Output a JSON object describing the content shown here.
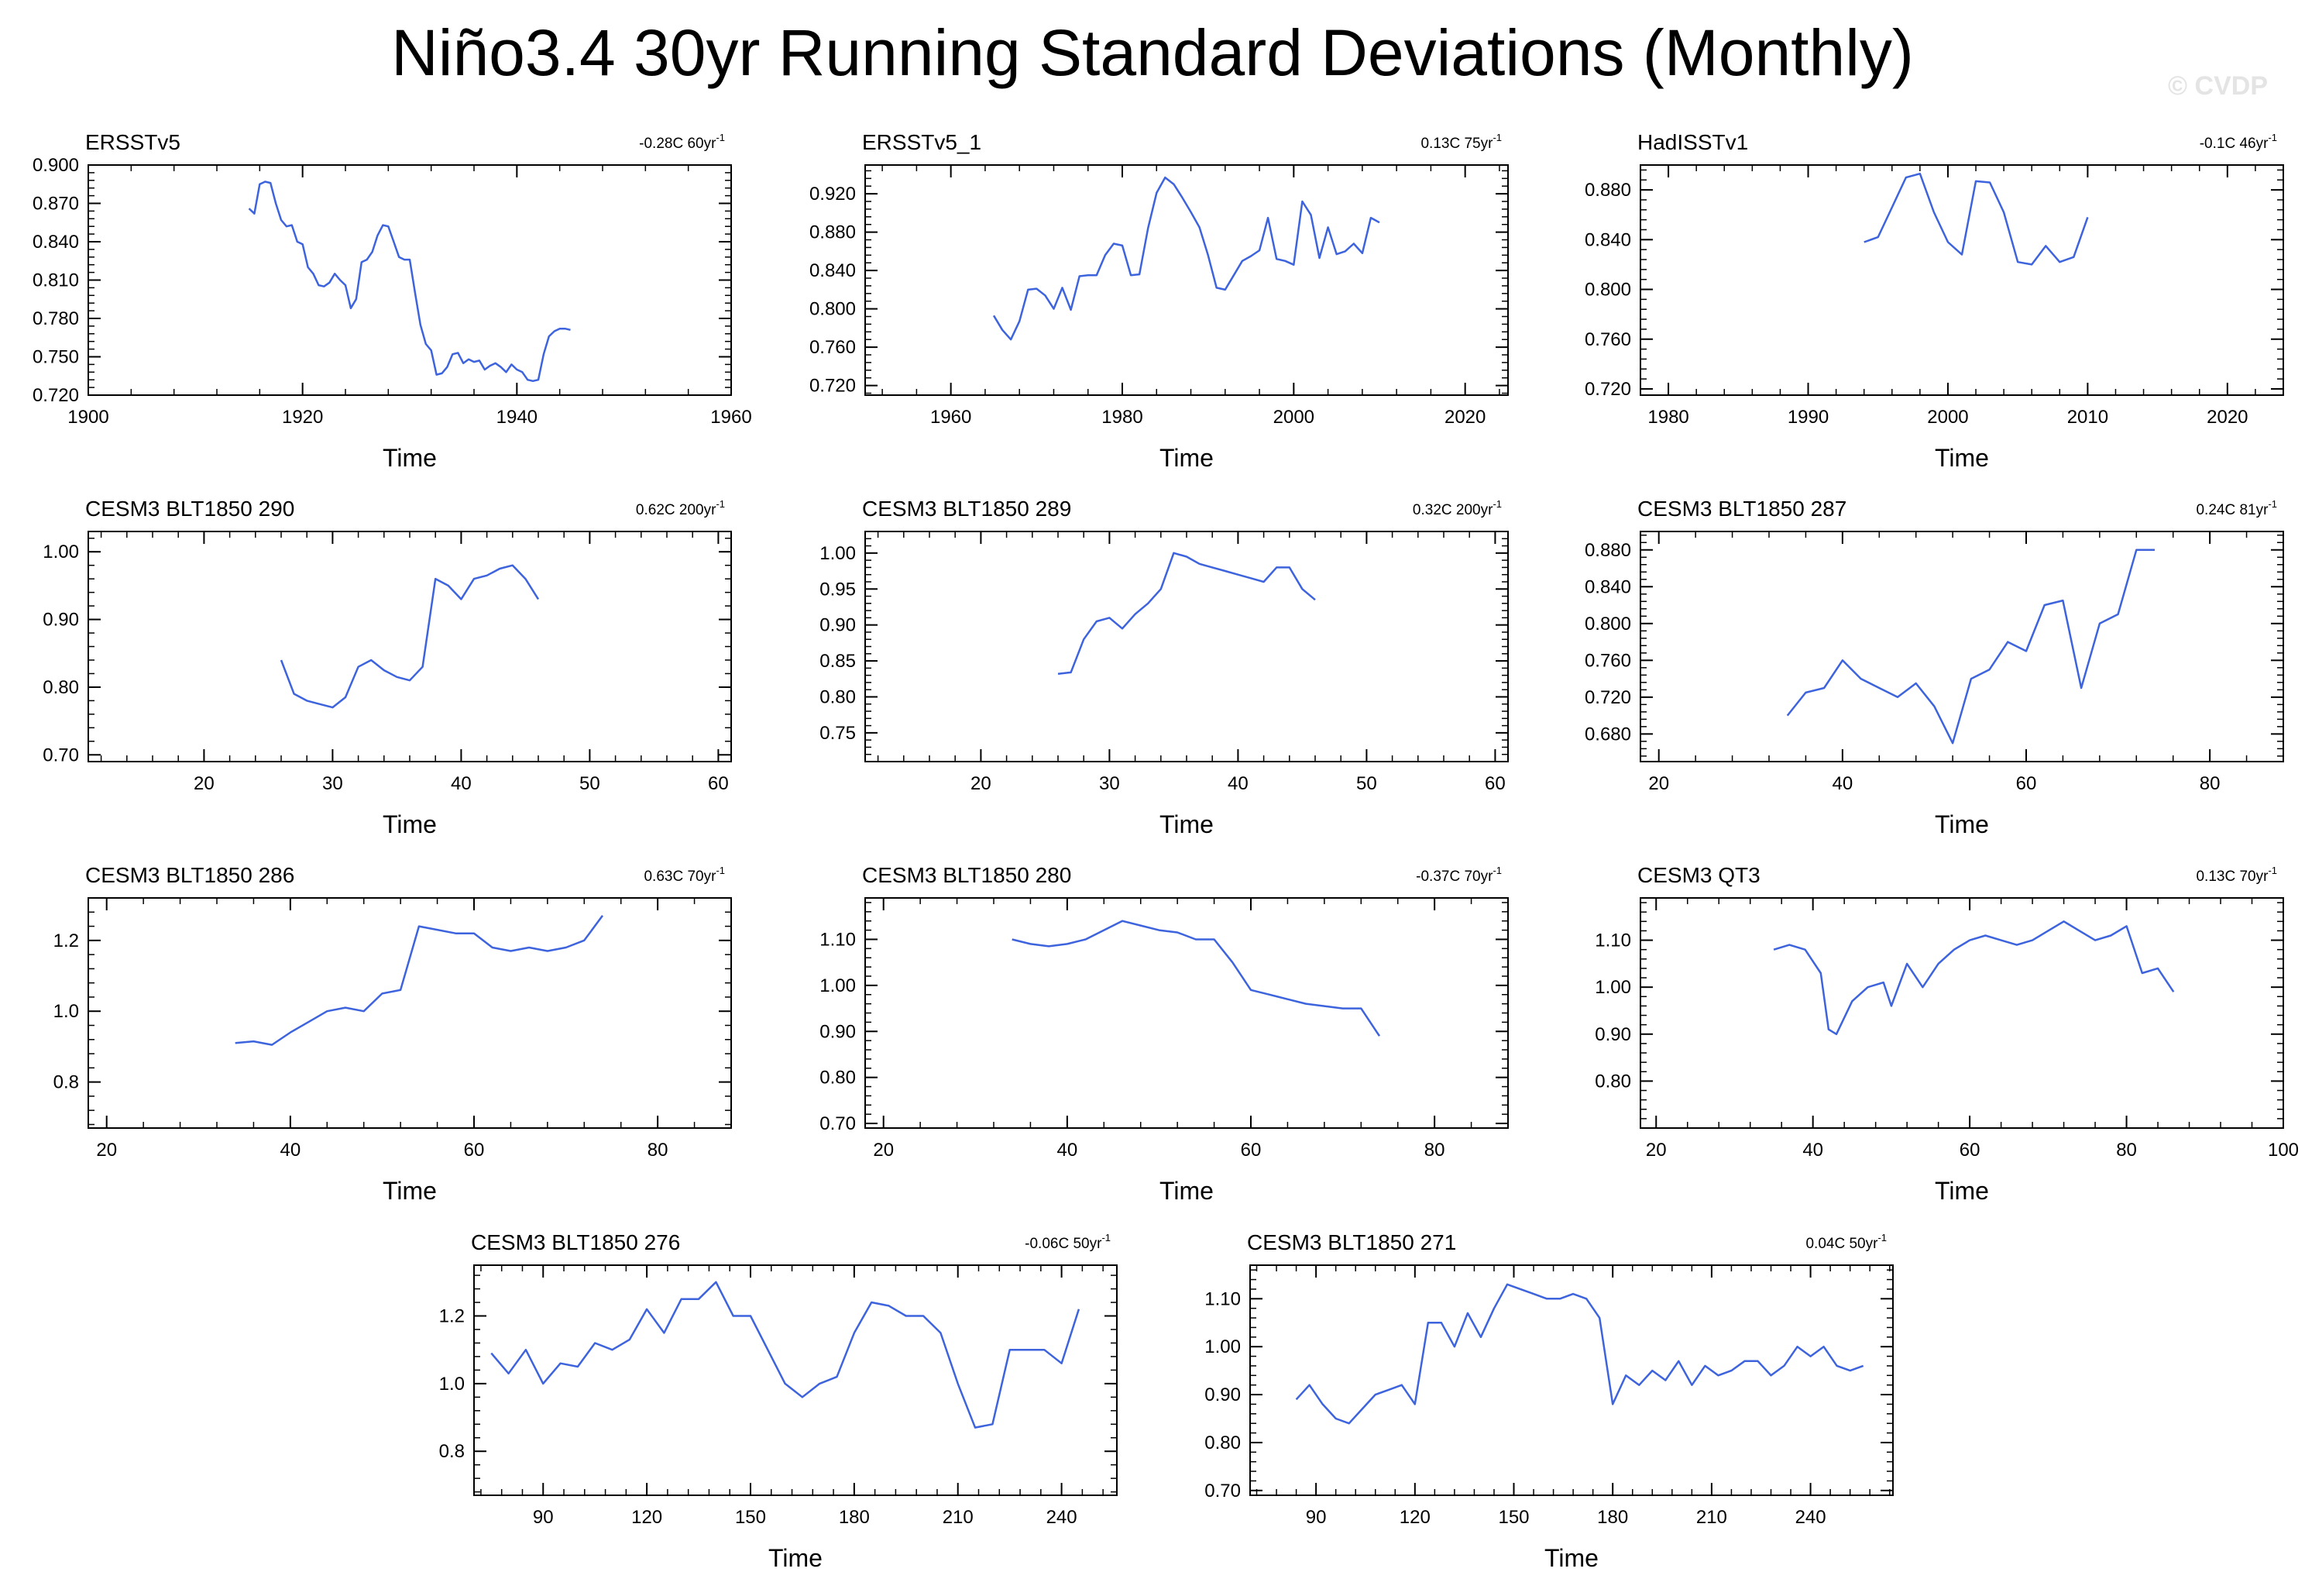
{
  "title": "Niño3.4 30yr Running Standard Deviations (Monthly)",
  "watermark": "© CVDP",
  "chart_data": [
    {
      "type": "line",
      "title": "ERSSTv5",
      "trend": "-0.28C 60yr",
      "trend_exp": "-1",
      "xlabel": "Time",
      "xlim": [
        1900,
        1960
      ],
      "ylim": [
        0.72,
        0.9
      ],
      "xticks": [
        1900,
        1920,
        1940,
        1960
      ],
      "yticks": [
        0.72,
        0.75,
        0.78,
        0.81,
        0.84,
        0.87,
        0.9
      ],
      "ydec": 3,
      "x": [
        1915,
        1915.5,
        1916,
        1916.5,
        1917,
        1917.5,
        1918,
        1918.5,
        1919,
        1919.5,
        1920,
        1920.5,
        1921,
        1921.5,
        1922,
        1922.5,
        1923,
        1923.5,
        1924,
        1924.5,
        1925,
        1925.5,
        1926,
        1926.5,
        1927,
        1927.5,
        1928,
        1928.5,
        1929,
        1929.5,
        1930,
        1930.5,
        1931,
        1931.5,
        1932,
        1932.5,
        1933,
        1933.5,
        1934,
        1934.5,
        1935,
        1935.5,
        1936,
        1936.5,
        1937,
        1937.5,
        1938,
        1938.5,
        1939,
        1939.5,
        1940,
        1940.5,
        1941,
        1941.5,
        1942,
        1942.5,
        1943,
        1943.5,
        1944,
        1944.5,
        1945
      ],
      "y": [
        0.866,
        0.862,
        0.885,
        0.887,
        0.886,
        0.87,
        0.857,
        0.852,
        0.853,
        0.84,
        0.838,
        0.82,
        0.815,
        0.806,
        0.805,
        0.808,
        0.815,
        0.81,
        0.806,
        0.788,
        0.795,
        0.824,
        0.826,
        0.832,
        0.845,
        0.853,
        0.852,
        0.84,
        0.828,
        0.826,
        0.826,
        0.8,
        0.775,
        0.76,
        0.755,
        0.736,
        0.737,
        0.742,
        0.752,
        0.753,
        0.745,
        0.748,
        0.746,
        0.747,
        0.74,
        0.743,
        0.745,
        0.742,
        0.738,
        0.744,
        0.74,
        0.738,
        0.732,
        0.731,
        0.732,
        0.752,
        0.766,
        0.77,
        0.772,
        0.772,
        0.771
      ]
    },
    {
      "type": "line",
      "title": "ERSSTv5_1",
      "trend": "0.13C 75yr",
      "trend_exp": "-1",
      "xlabel": "Time",
      "xlim": [
        1950,
        2025
      ],
      "ylim": [
        0.71,
        0.95
      ],
      "xticks": [
        1960,
        1980,
        2000,
        2020
      ],
      "yticks": [
        0.72,
        0.76,
        0.8,
        0.84,
        0.88,
        0.92
      ],
      "ydec": 3,
      "x": [
        1965,
        1966,
        1967,
        1968,
        1969,
        1970,
        1971,
        1972,
        1973,
        1974,
        1975,
        1976,
        1977,
        1978,
        1979,
        1980,
        1981,
        1982,
        1983,
        1984,
        1985,
        1986,
        1987,
        1988,
        1989,
        1990,
        1991,
        1992,
        1993,
        1994,
        1995,
        1996,
        1997,
        1998,
        1999,
        2000,
        2001,
        2002,
        2003,
        2004,
        2005,
        2006,
        2007,
        2008,
        2009,
        2010
      ],
      "y": [
        0.793,
        0.778,
        0.768,
        0.787,
        0.82,
        0.821,
        0.814,
        0.8,
        0.822,
        0.799,
        0.834,
        0.835,
        0.835,
        0.856,
        0.868,
        0.866,
        0.835,
        0.836,
        0.884,
        0.921,
        0.937,
        0.93,
        0.916,
        0.901,
        0.885,
        0.856,
        0.822,
        0.82,
        0.835,
        0.85,
        0.855,
        0.861,
        0.895,
        0.852,
        0.85,
        0.846,
        0.912,
        0.898,
        0.853,
        0.885,
        0.857,
        0.86,
        0.868,
        0.858,
        0.895,
        0.89
      ]
    },
    {
      "type": "line",
      "title": "HadISSTv1",
      "trend": "-0.1C 46yr",
      "trend_exp": "-1",
      "xlabel": "Time",
      "xlim": [
        1978,
        2024
      ],
      "ylim": [
        0.715,
        0.9
      ],
      "xticks": [
        1980,
        1990,
        2000,
        2010,
        2020
      ],
      "yticks": [
        0.72,
        0.76,
        0.8,
        0.84,
        0.88
      ],
      "ydec": 3,
      "x": [
        1994,
        1995,
        1996,
        1997,
        1998,
        1999,
        2000,
        2001,
        2002,
        2003,
        2004,
        2005,
        2006,
        2007,
        2008,
        2009,
        2010
      ],
      "y": [
        0.838,
        0.842,
        0.866,
        0.89,
        0.893,
        0.862,
        0.838,
        0.828,
        0.887,
        0.886,
        0.862,
        0.822,
        0.82,
        0.835,
        0.822,
        0.826,
        0.858
      ]
    },
    {
      "type": "line",
      "title": "CESM3 BLT1850 290",
      "trend": "0.62C 200yr",
      "trend_exp": "-1",
      "xlabel": "Time",
      "xlim": [
        11,
        61
      ],
      "ylim": [
        0.69,
        1.03
      ],
      "xticks": [
        20,
        30,
        40,
        50,
        60
      ],
      "yticks": [
        0.7,
        0.8,
        0.9,
        1.0
      ],
      "ydec": 2,
      "x": [
        26,
        27,
        28,
        29,
        30,
        31,
        32,
        33,
        34,
        35,
        36,
        37,
        38,
        39,
        40,
        41,
        42,
        43,
        44,
        45,
        46
      ],
      "y": [
        0.84,
        0.79,
        0.78,
        0.775,
        0.77,
        0.785,
        0.83,
        0.84,
        0.825,
        0.815,
        0.81,
        0.83,
        0.96,
        0.95,
        0.93,
        0.96,
        0.965,
        0.975,
        0.98,
        0.96,
        0.93
      ]
    },
    {
      "type": "line",
      "title": "CESM3 BLT1850 289",
      "trend": "0.32C 200yr",
      "trend_exp": "-1",
      "xlabel": "Time",
      "xlim": [
        11,
        61
      ],
      "ylim": [
        0.71,
        1.03
      ],
      "xticks": [
        20,
        30,
        40,
        50,
        60
      ],
      "yticks": [
        0.75,
        0.8,
        0.85,
        0.9,
        0.95,
        1.0
      ],
      "ydec": 2,
      "x": [
        26,
        27,
        28,
        29,
        30,
        31,
        32,
        33,
        34,
        35,
        36,
        37,
        38,
        39,
        40,
        41,
        42,
        43,
        44,
        45,
        46
      ],
      "y": [
        0.832,
        0.834,
        0.88,
        0.905,
        0.91,
        0.895,
        0.915,
        0.93,
        0.95,
        1.0,
        0.995,
        0.985,
        0.98,
        0.975,
        0.97,
        0.965,
        0.96,
        0.98,
        0.98,
        0.95,
        0.935
      ]
    },
    {
      "type": "line",
      "title": "CESM3 BLT1850 287",
      "trend": "0.24C 81yr",
      "trend_exp": "-1",
      "xlabel": "Time",
      "xlim": [
        18,
        88
      ],
      "ylim": [
        0.65,
        0.9
      ],
      "xticks": [
        20,
        40,
        60,
        80
      ],
      "yticks": [
        0.68,
        0.72,
        0.76,
        0.8,
        0.84,
        0.88
      ],
      "ydec": 3,
      "x": [
        34,
        36,
        38,
        40,
        42,
        44,
        46,
        48,
        50,
        52,
        54,
        56,
        58,
        60,
        62,
        64,
        66,
        68,
        70,
        72,
        74
      ],
      "y": [
        0.7,
        0.725,
        0.73,
        0.76,
        0.74,
        0.73,
        0.72,
        0.735,
        0.71,
        0.67,
        0.74,
        0.75,
        0.78,
        0.77,
        0.82,
        0.825,
        0.73,
        0.8,
        0.81,
        0.88,
        0.88
      ]
    },
    {
      "type": "line",
      "title": "CESM3 BLT1850 286",
      "trend": "0.63C 70yr",
      "trend_exp": "-1",
      "xlabel": "Time",
      "xlim": [
        18,
        88
      ],
      "ylim": [
        0.67,
        1.32
      ],
      "xticks": [
        20,
        40,
        60,
        80
      ],
      "yticks": [
        0.8,
        1.0,
        1.2
      ],
      "ydec": 1,
      "x": [
        34,
        36,
        38,
        40,
        42,
        44,
        46,
        48,
        50,
        52,
        54,
        56,
        58,
        60,
        62,
        64,
        66,
        68,
        70,
        72,
        74
      ],
      "y": [
        0.91,
        0.915,
        0.905,
        0.94,
        0.97,
        1.0,
        1.01,
        1.0,
        1.05,
        1.06,
        1.24,
        1.23,
        1.22,
        1.22,
        1.18,
        1.17,
        1.18,
        1.17,
        1.18,
        1.2,
        1.27
      ]
    },
    {
      "type": "line",
      "title": "CESM3 BLT1850 280",
      "trend": "-0.37C 70yr",
      "trend_exp": "-1",
      "xlabel": "Time",
      "xlim": [
        18,
        88
      ],
      "ylim": [
        0.69,
        1.19
      ],
      "xticks": [
        20,
        40,
        60,
        80
      ],
      "yticks": [
        0.7,
        0.8,
        0.9,
        1.0,
        1.1
      ],
      "ydec": 2,
      "x": [
        34,
        36,
        38,
        40,
        42,
        44,
        46,
        48,
        50,
        52,
        54,
        56,
        58,
        60,
        62,
        64,
        66,
        68,
        70,
        72,
        74
      ],
      "y": [
        1.1,
        1.09,
        1.085,
        1.09,
        1.1,
        1.12,
        1.14,
        1.13,
        1.12,
        1.115,
        1.1,
        1.1,
        1.05,
        0.99,
        0.98,
        0.97,
        0.96,
        0.955,
        0.95,
        0.95,
        0.89
      ]
    },
    {
      "type": "line",
      "title": "CESM3 QT3",
      "trend": "0.13C 70yr",
      "trend_exp": "-1",
      "xlabel": "Time",
      "xlim": [
        18,
        100
      ],
      "ylim": [
        0.7,
        1.19
      ],
      "xticks": [
        20,
        40,
        60,
        80,
        100
      ],
      "yticks": [
        0.8,
        0.9,
        1.0,
        1.1
      ],
      "ydec": 2,
      "x": [
        35,
        37,
        39,
        41,
        42,
        43,
        45,
        47,
        49,
        50,
        52,
        54,
        56,
        58,
        60,
        62,
        64,
        66,
        68,
        70,
        72,
        74,
        76,
        78,
        80,
        82,
        84,
        86
      ],
      "y": [
        1.08,
        1.09,
        1.08,
        1.03,
        0.91,
        0.9,
        0.97,
        1.0,
        1.01,
        0.96,
        1.05,
        1.0,
        1.05,
        1.08,
        1.1,
        1.11,
        1.1,
        1.09,
        1.1,
        1.12,
        1.14,
        1.12,
        1.1,
        1.11,
        1.13,
        1.03,
        1.04,
        0.99
      ]
    },
    {
      "type": "line",
      "title": "CESM3 BLT1850 276",
      "trend": "-0.06C 50yr",
      "trend_exp": "-1",
      "xlabel": "Time",
      "xlim": [
        70,
        256
      ],
      "ylim": [
        0.67,
        1.35
      ],
      "xticks": [
        90,
        120,
        150,
        180,
        210,
        240
      ],
      "yticks": [
        0.8,
        1.0,
        1.2
      ],
      "ydec": 1,
      "x": [
        75,
        80,
        85,
        90,
        95,
        100,
        105,
        110,
        115,
        120,
        125,
        130,
        135,
        140,
        145,
        150,
        155,
        160,
        165,
        170,
        175,
        180,
        185,
        190,
        195,
        200,
        205,
        210,
        215,
        220,
        225,
        230,
        235,
        240,
        245
      ],
      "y": [
        1.09,
        1.03,
        1.1,
        1.0,
        1.06,
        1.05,
        1.12,
        1.1,
        1.13,
        1.22,
        1.15,
        1.25,
        1.25,
        1.3,
        1.2,
        1.2,
        1.1,
        1.0,
        0.96,
        1.0,
        1.02,
        1.15,
        1.24,
        1.23,
        1.2,
        1.2,
        1.15,
        1.0,
        0.87,
        0.88,
        1.1,
        1.1,
        1.1,
        1.06,
        1.22
      ]
    },
    {
      "type": "line",
      "title": "CESM3 BLT1850 271",
      "trend": "0.04C 50yr",
      "trend_exp": "-1",
      "xlabel": "Time",
      "xlim": [
        70,
        265
      ],
      "ylim": [
        0.69,
        1.17
      ],
      "xticks": [
        90,
        120,
        150,
        180,
        210,
        240
      ],
      "yticks": [
        0.7,
        0.8,
        0.9,
        1.0,
        1.1
      ],
      "ydec": 2,
      "x": [
        84,
        88,
        92,
        96,
        100,
        104,
        108,
        112,
        116,
        120,
        124,
        128,
        132,
        136,
        140,
        144,
        148,
        152,
        156,
        160,
        164,
        168,
        172,
        176,
        180,
        184,
        188,
        192,
        196,
        200,
        204,
        208,
        212,
        216,
        220,
        224,
        228,
        232,
        236,
        240,
        244,
        248,
        252,
        256
      ],
      "y": [
        0.89,
        0.92,
        0.88,
        0.85,
        0.84,
        0.87,
        0.9,
        0.91,
        0.92,
        0.88,
        1.05,
        1.05,
        1.0,
        1.07,
        1.02,
        1.08,
        1.13,
        1.12,
        1.11,
        1.1,
        1.1,
        1.11,
        1.1,
        1.06,
        0.88,
        0.94,
        0.92,
        0.95,
        0.93,
        0.97,
        0.92,
        0.96,
        0.94,
        0.95,
        0.97,
        0.97,
        0.94,
        0.96,
        1.0,
        0.98,
        1.0,
        0.96,
        0.95,
        0.96
      ]
    }
  ]
}
